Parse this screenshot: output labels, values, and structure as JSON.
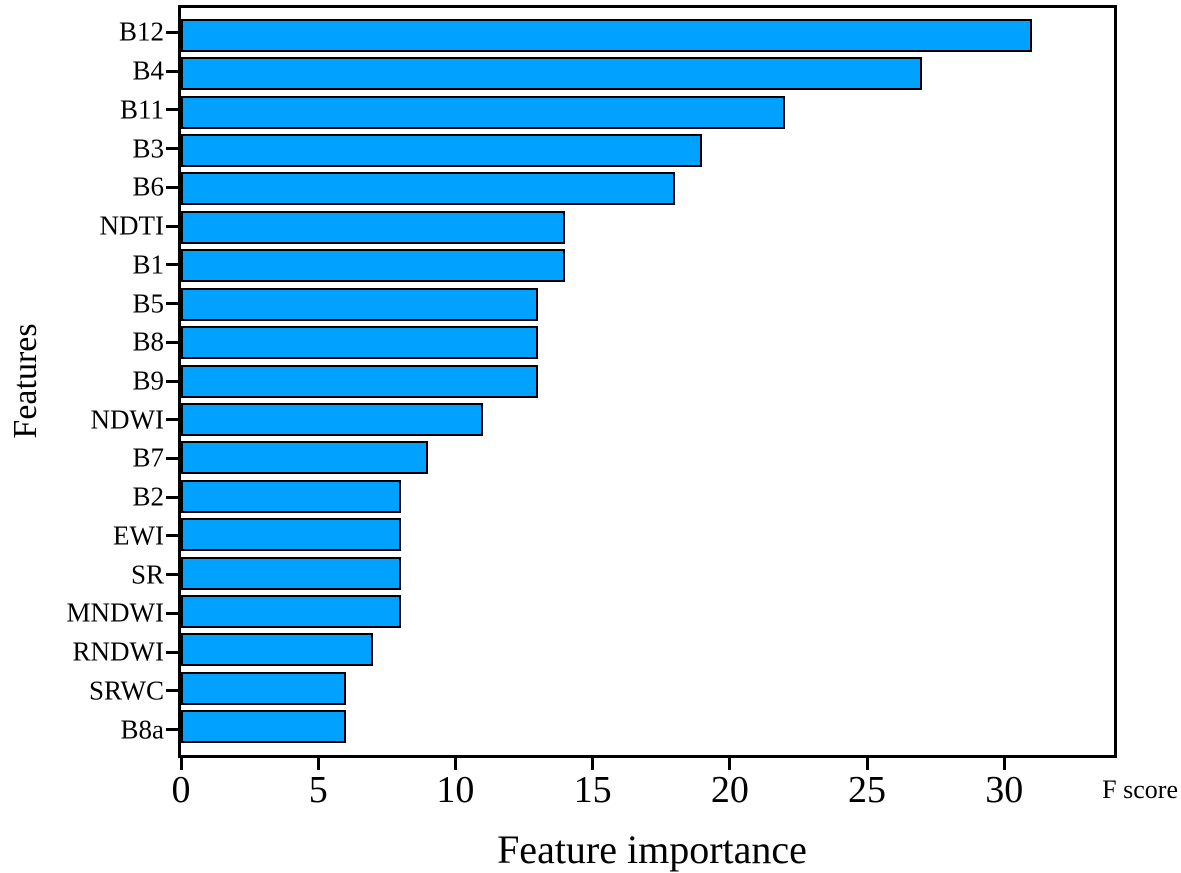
{
  "chart_data": {
    "type": "bar",
    "orientation": "horizontal",
    "title": "",
    "xlabel": "Feature importance",
    "ylabel": "Features",
    "x_unit_label": "F score",
    "categories": [
      "B12",
      "B4",
      "B11",
      "B3",
      "B6",
      "NDTI",
      "B1",
      "B5",
      "B8",
      "B9",
      "NDWI",
      "B7",
      "B2",
      "EWI",
      "SR",
      "MNDWI",
      "RNDWI",
      "SRWC",
      "B8a"
    ],
    "values": [
      31,
      27,
      22,
      19,
      18,
      14,
      14,
      13,
      13,
      13,
      11,
      9,
      8,
      8,
      8,
      8,
      7,
      6,
      6
    ],
    "x_ticks": [
      0,
      5,
      10,
      15,
      20,
      25,
      30
    ],
    "xlim": [
      0,
      34
    ],
    "grid": false,
    "legend": false,
    "bar_color": "#00A1FF",
    "bar_border_color": "#000000",
    "axis_color": "#000000",
    "background_color": "#FFFFFF"
  }
}
